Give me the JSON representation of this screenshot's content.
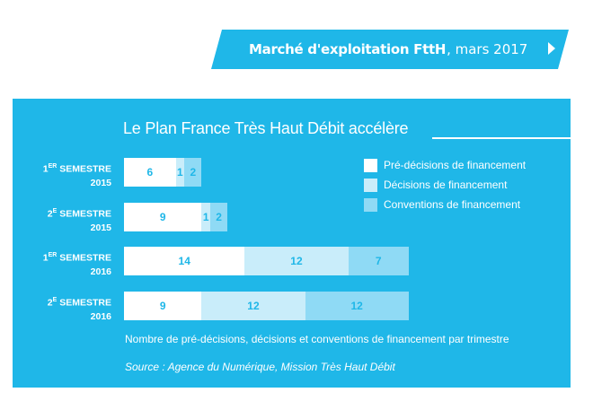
{
  "banner": {
    "title": "Marché d'exploitation FttH",
    "date": ", mars 2017",
    "arrow_icon": "chevron-right-icon"
  },
  "chart_data": {
    "type": "bar",
    "orientation": "horizontal",
    "stacked": true,
    "title": "Le Plan France Très Haut Débit accélère",
    "categories": [
      {
        "line1": "1",
        "sup": "ER",
        "rest": " SEMESTRE",
        "line2": "2015"
      },
      {
        "line1": "2",
        "sup": "E",
        "rest": " SEMESTRE",
        "line2": "2015"
      },
      {
        "line1": "1",
        "sup": "ER",
        "rest": " SEMESTRE",
        "line2": "2016"
      },
      {
        "line1": "2",
        "sup": "E",
        "rest": " SEMESTRE",
        "line2": "2016"
      }
    ],
    "series": [
      {
        "name": "Pré-décisions de financement",
        "values": [
          6,
          9,
          14,
          9
        ],
        "color": "#ffffff"
      },
      {
        "name": "Décisions de financement",
        "values": [
          1,
          1,
          12,
          12
        ],
        "color": "#c9edfa"
      },
      {
        "name": "Conventions de financement",
        "values": [
          2,
          2,
          7,
          12
        ],
        "color": "#8fdaf5"
      }
    ],
    "label_color": "#1fb7e8",
    "legend_position": "top-right",
    "grid": false,
    "xlabel": "Nombre de pré-décisions, décisions et conventions de financement par trimestre"
  },
  "source": "Source : Agence du Numérique, Mission Très Haut Débit",
  "colors": {
    "accent": "#1fb7e8",
    "background": "#ffffff"
  }
}
